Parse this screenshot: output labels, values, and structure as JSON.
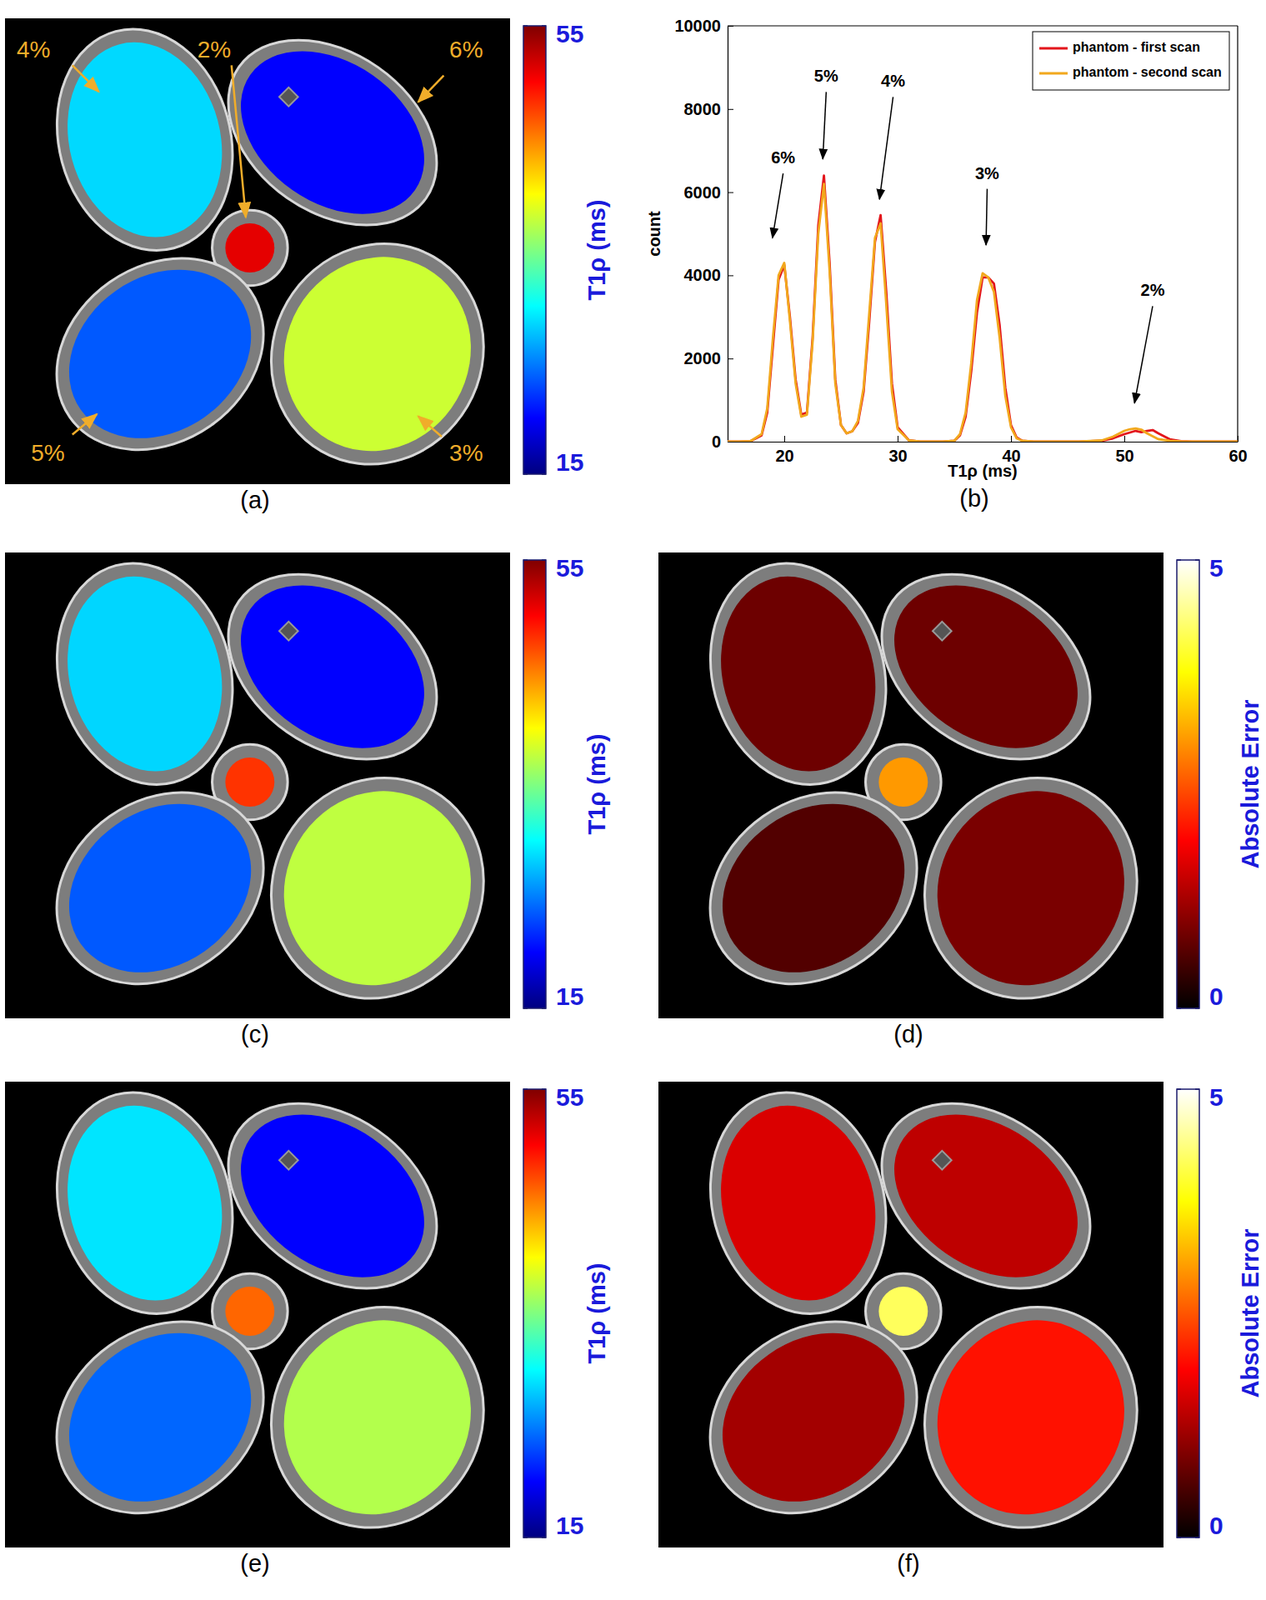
{
  "chart_data": [
    {
      "type": "map",
      "title": "(a)",
      "color": "jet",
      "categories": [
        "4%",
        "2%",
        "6%",
        "5%",
        "3%"
      ],
      "values": [
        28.5,
        51,
        20,
        23.5,
        38
      ],
      "colorbar": {
        "label": "T1ρ (ms)",
        "lim": [
          15,
          55
        ],
        "ticks": [
          15,
          55
        ]
      }
    },
    {
      "type": "line",
      "title": "(b)",
      "x": [
        15,
        16,
        17,
        18,
        18.5,
        19,
        19.5,
        20,
        20.5,
        21,
        21.5,
        22,
        22.5,
        23,
        23.5,
        24,
        24.5,
        25,
        25.5,
        26,
        26.5,
        27,
        27.5,
        28,
        28.5,
        29,
        29.5,
        30,
        31,
        32,
        33,
        34,
        35,
        35.5,
        36,
        36.5,
        37,
        37.5,
        38,
        38.5,
        39,
        39.5,
        40,
        40.5,
        41,
        42,
        44,
        46,
        48,
        49,
        50,
        50.5,
        51,
        51.5,
        52,
        52.5,
        53,
        54,
        55,
        56,
        58,
        60
      ],
      "series": [
        {
          "name": "phantom - first scan",
          "color": "#e3151b",
          "values": [
            0,
            0,
            10,
            150,
            700,
            2300,
            3900,
            4250,
            3000,
            1500,
            650,
            700,
            2500,
            5200,
            6400,
            4300,
            1500,
            400,
            200,
            250,
            450,
            1200,
            2900,
            4800,
            5450,
            3600,
            1400,
            350,
            30,
            0,
            0,
            0,
            20,
            150,
            600,
            1700,
            3100,
            3950,
            3950,
            3800,
            2800,
            1300,
            400,
            100,
            20,
            0,
            0,
            0,
            20,
            80,
            180,
            220,
            260,
            230,
            260,
            280,
            200,
            60,
            10,
            0,
            0,
            0
          ]
        },
        {
          "name": "phantom - second scan",
          "color": "#f2a81d",
          "values": [
            0,
            0,
            10,
            180,
            800,
            2500,
            4000,
            4300,
            2900,
            1400,
            600,
            650,
            2400,
            5000,
            6200,
            4100,
            1400,
            400,
            200,
            250,
            500,
            1300,
            3100,
            4900,
            5250,
            3300,
            1200,
            300,
            30,
            0,
            0,
            0,
            20,
            180,
            700,
            1900,
            3400,
            4050,
            3950,
            3600,
            2500,
            1100,
            350,
            80,
            20,
            0,
            0,
            0,
            30,
            120,
            260,
            300,
            320,
            290,
            200,
            130,
            60,
            20,
            5,
            0,
            0,
            0
          ]
        }
      ],
      "xlabel": "T1ρ (ms)",
      "ylabel": "count",
      "xlim": [
        15,
        60
      ],
      "ylim": [
        0,
        10000
      ],
      "xticks": [
        20,
        30,
        40,
        50,
        60
      ],
      "yticks": [
        0,
        2000,
        4000,
        6000,
        8000,
        10000
      ],
      "legend": "upper right",
      "annotations": [
        {
          "text": "6%",
          "x": 18.96,
          "y": 4900,
          "xytext": [
            19.9,
            6690
          ]
        },
        {
          "text": "5%",
          "x": 23.4,
          "y": 6800,
          "xytext": [
            23.7,
            8650
          ]
        },
        {
          "text": "4%",
          "x": 28.4,
          "y": 5830,
          "xytext": [
            29.6,
            8530
          ]
        },
        {
          "text": "3%",
          "x": 37.8,
          "y": 4730,
          "xytext": [
            37.9,
            6320
          ]
        },
        {
          "text": "2%",
          "x": 50.9,
          "y": 930,
          "xytext": [
            52.5,
            3500
          ]
        }
      ]
    },
    {
      "type": "map",
      "title": "(c)",
      "color": "jet",
      "values": [
        28.4,
        48,
        20,
        23.5,
        37.5
      ],
      "colorbar": {
        "label": "T1ρ (ms)",
        "lim": [
          15,
          55
        ],
        "ticks": [
          15,
          55
        ]
      }
    },
    {
      "type": "map",
      "title": "(d)",
      "color": "hot",
      "values": [
        0.8,
        3,
        0.8,
        0.6,
        0.9
      ],
      "colorbar": {
        "label": "Absolute Error",
        "lim": [
          0,
          5
        ],
        "ticks": [
          0,
          5
        ]
      }
    },
    {
      "type": "map",
      "title": "(e)",
      "color": "jet",
      "values": [
        29,
        46,
        20,
        24,
        37
      ],
      "colorbar": {
        "label": "T1ρ (ms)",
        "lim": [
          15,
          55
        ],
        "ticks": [
          15,
          55
        ]
      }
    },
    {
      "type": "map",
      "title": "(f)",
      "color": "hot",
      "values": [
        1.6,
        4.2,
        1.4,
        1.2,
        2
      ],
      "colorbar": {
        "label": "Absolute Error",
        "lim": [
          0,
          5
        ],
        "ticks": [
          0,
          5
        ]
      }
    }
  ]
}
